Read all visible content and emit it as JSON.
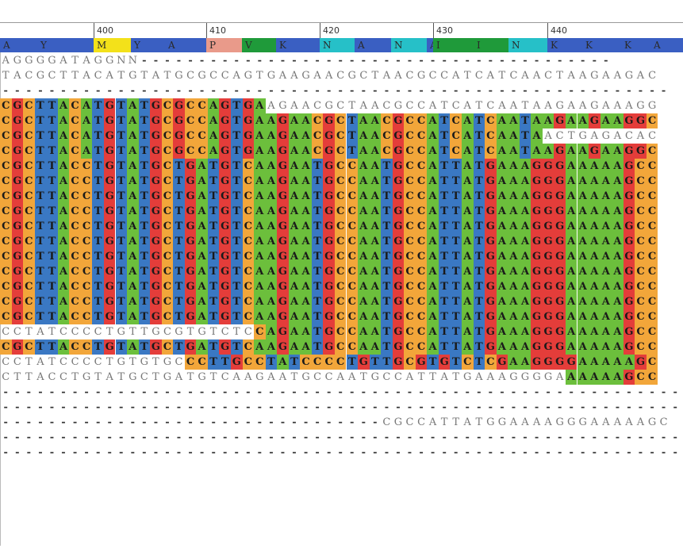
{
  "ruler": {
    "ticks": [
      "400",
      "410",
      "420",
      "430",
      "440"
    ]
  },
  "consensus": {
    "cells": [
      {
        "label": "A",
        "color": "#3a5fc2"
      },
      {
        "label": "Y",
        "color": "#3a5fc2"
      },
      {
        "label": "M",
        "color": "#f3e11a"
      },
      {
        "label": "Y",
        "color": "#3a5fc2"
      },
      {
        "label": "A",
        "color": "#3a5fc2"
      },
      {
        "label": "P",
        "color": "#e99a8a"
      },
      {
        "label": "V",
        "color": "#1f9a3a"
      },
      {
        "label": "K",
        "color": "#3a5fc2"
      },
      {
        "label": "N",
        "color": "#26c0c8"
      },
      {
        "label": "A",
        "color": "#3a5fc2"
      },
      {
        "label": "N",
        "color": "#26c0c8"
      },
      {
        "label": "A",
        "color": "#3a5fc2"
      },
      {
        "label": "I",
        "color": "#1f9a3a"
      },
      {
        "label": "I",
        "color": "#1f9a3a"
      },
      {
        "label": "N",
        "color": "#26c0c8"
      },
      {
        "label": "K",
        "color": "#3a5fc2"
      },
      {
        "label": "K",
        "color": "#3a5fc2"
      },
      {
        "label": "K",
        "color": "#3a5fc2"
      },
      {
        "label": "A",
        "color": "#3a5fc2"
      }
    ]
  },
  "colors": {
    "A": "#6cbf3c",
    "C": "#f2a63a",
    "G": "#e43d3a",
    "T": "#3a78c3"
  },
  "rows": [
    {
      "seq": "AGGGGATAGGNN-----------------------------------------",
      "hl_from": -1,
      "hl_to": -1
    },
    {
      "seq": "TACGCTTACATGTATGCGCCAGTGAAGAACGCTAACGCCATCATCAACTAAGAAGAC",
      "hl_from": -1,
      "hl_to": -1
    },
    {
      "seq": "----------------------------------------------------------",
      "hl_from": -1,
      "hl_to": -1
    },
    {
      "seq": "CGCTTACATGTATGCGCCAGTGAAGAACGCTAACGCCATCATCAATAAGAAGAAAGG",
      "hl_from": 0,
      "hl_to": 22
    },
    {
      "seq": "CGCTTACATGTATGCGCCAGTGAAGAACGCTAACGCCATCATCAATAAGAAGAAGGC",
      "hl_from": 0,
      "hl_to": 58
    },
    {
      "seq": "CGCTTACATGTATGCGCCAGTGAAGAACGCTAACGCCATCATCAATAACTGAGACAC",
      "hl_from": 0,
      "hl_to": 46
    },
    {
      "seq": "CGCTTACATGTATGCGCCAGTGAAGAACGCTAACGCCATCATCAATAAGAAGAAGGC",
      "hl_from": 0,
      "hl_to": 58
    },
    {
      "seq": "CGCTTACCTGTATGCTGATGTCAAGAATGCCAATGCCATTATGAAAGGGAAAAAGCC",
      "hl_from": 0,
      "hl_to": 58
    },
    {
      "seq": "CGCTTACCTGTATGCTGATGTCAAGAATGCCAATGCCATTATGAAAGGGAAAAAGCC",
      "hl_from": 0,
      "hl_to": 58
    },
    {
      "seq": "CGCTTACCTGTATGCTGATGTCAAGAATGCCAATGCCATTATGAAAGGGAAAAAGCC",
      "hl_from": 0,
      "hl_to": 58
    },
    {
      "seq": "CGCTTACCTGTATGCTGATGTCAAGAATGCCAATGCCATTATGAAAGGGAAAAAGCC",
      "hl_from": 0,
      "hl_to": 58
    },
    {
      "seq": "CGCTTACCTGTATGCTGATGTCAAGAATGCCAATGCCATTATGAAAGGGAAAAAGCC",
      "hl_from": 0,
      "hl_to": 58
    },
    {
      "seq": "CGCTTACCTGTATGCTGATGTCAAGAATGCCAATGCCATTATGAAAGGGAAAAAGCC",
      "hl_from": 0,
      "hl_to": 58
    },
    {
      "seq": "CGCTTACCTGTATGCTGATGTCAAGAATGCCAATGCCATTATGAAAGGGAAAAAGCC",
      "hl_from": 0,
      "hl_to": 58
    },
    {
      "seq": "CGCTTACCTGTATGCTGATGTCAAGAATGCCAATGCCATTATGAAAGGGAAAAAGCC",
      "hl_from": 0,
      "hl_to": 58
    },
    {
      "seq": "CGCTTACCTGTATGCTGATGTCAAGAATGCCAATGCCATTATGAAAGGGAAAAAGCC",
      "hl_from": 0,
      "hl_to": 58
    },
    {
      "seq": "CGCTTACCTGTATGCTGATGTCAAGAATGCCAATGCCATTATGAAAGGGAAAAAGCC",
      "hl_from": 0,
      "hl_to": 58
    },
    {
      "seq": "CGCTTACCTGTATGCTGATGTCAAGAATGCCAATGCCATTATGAAAGGGAAAAAGCC",
      "hl_from": 0,
      "hl_to": 58
    },
    {
      "seq": "CCTATCCCCTGTTGCGTGTCTCCAGAATGCCAATGCCATTATGAAAGGGAAAAAGCC",
      "hl_from": 22,
      "hl_to": 58
    },
    {
      "seq": "CGCTTACCTGTATGCTGATGTCAAGAATGCCAATGCCATTATGAAAGGGAAAAAGCC",
      "hl_from": 0,
      "hl_to": 58
    },
    {
      "seq": "CCTATCCCCTGTGTGCCCTTGCCTATCCCCTGTTGCGTGTCTCGAAGGGGAAAAAGC",
      "hl_from": 16,
      "hl_to": 58
    },
    {
      "seq": "CTTACCTGTATGCTGATGTCAAGAATGCCAATGCCATTATGAAAGGGGAAAAAAGCC",
      "hl_from": 49,
      "hl_to": 58
    },
    {
      "seq": "-----------------------------------------------------------",
      "hl_from": -1,
      "hl_to": -1
    },
    {
      "seq": "-----------------------------------------------------------",
      "hl_from": -1,
      "hl_to": -1
    },
    {
      "seq": "---------------------------------CGCCATTATGGAAAAGGGAAAAAGC",
      "hl_from": -1,
      "hl_to": -1
    },
    {
      "seq": "-----------------------------------------------------------",
      "hl_from": -1,
      "hl_to": -1
    },
    {
      "seq": "-----------------------------------------------------------",
      "hl_from": -1,
      "hl_to": -1
    }
  ]
}
